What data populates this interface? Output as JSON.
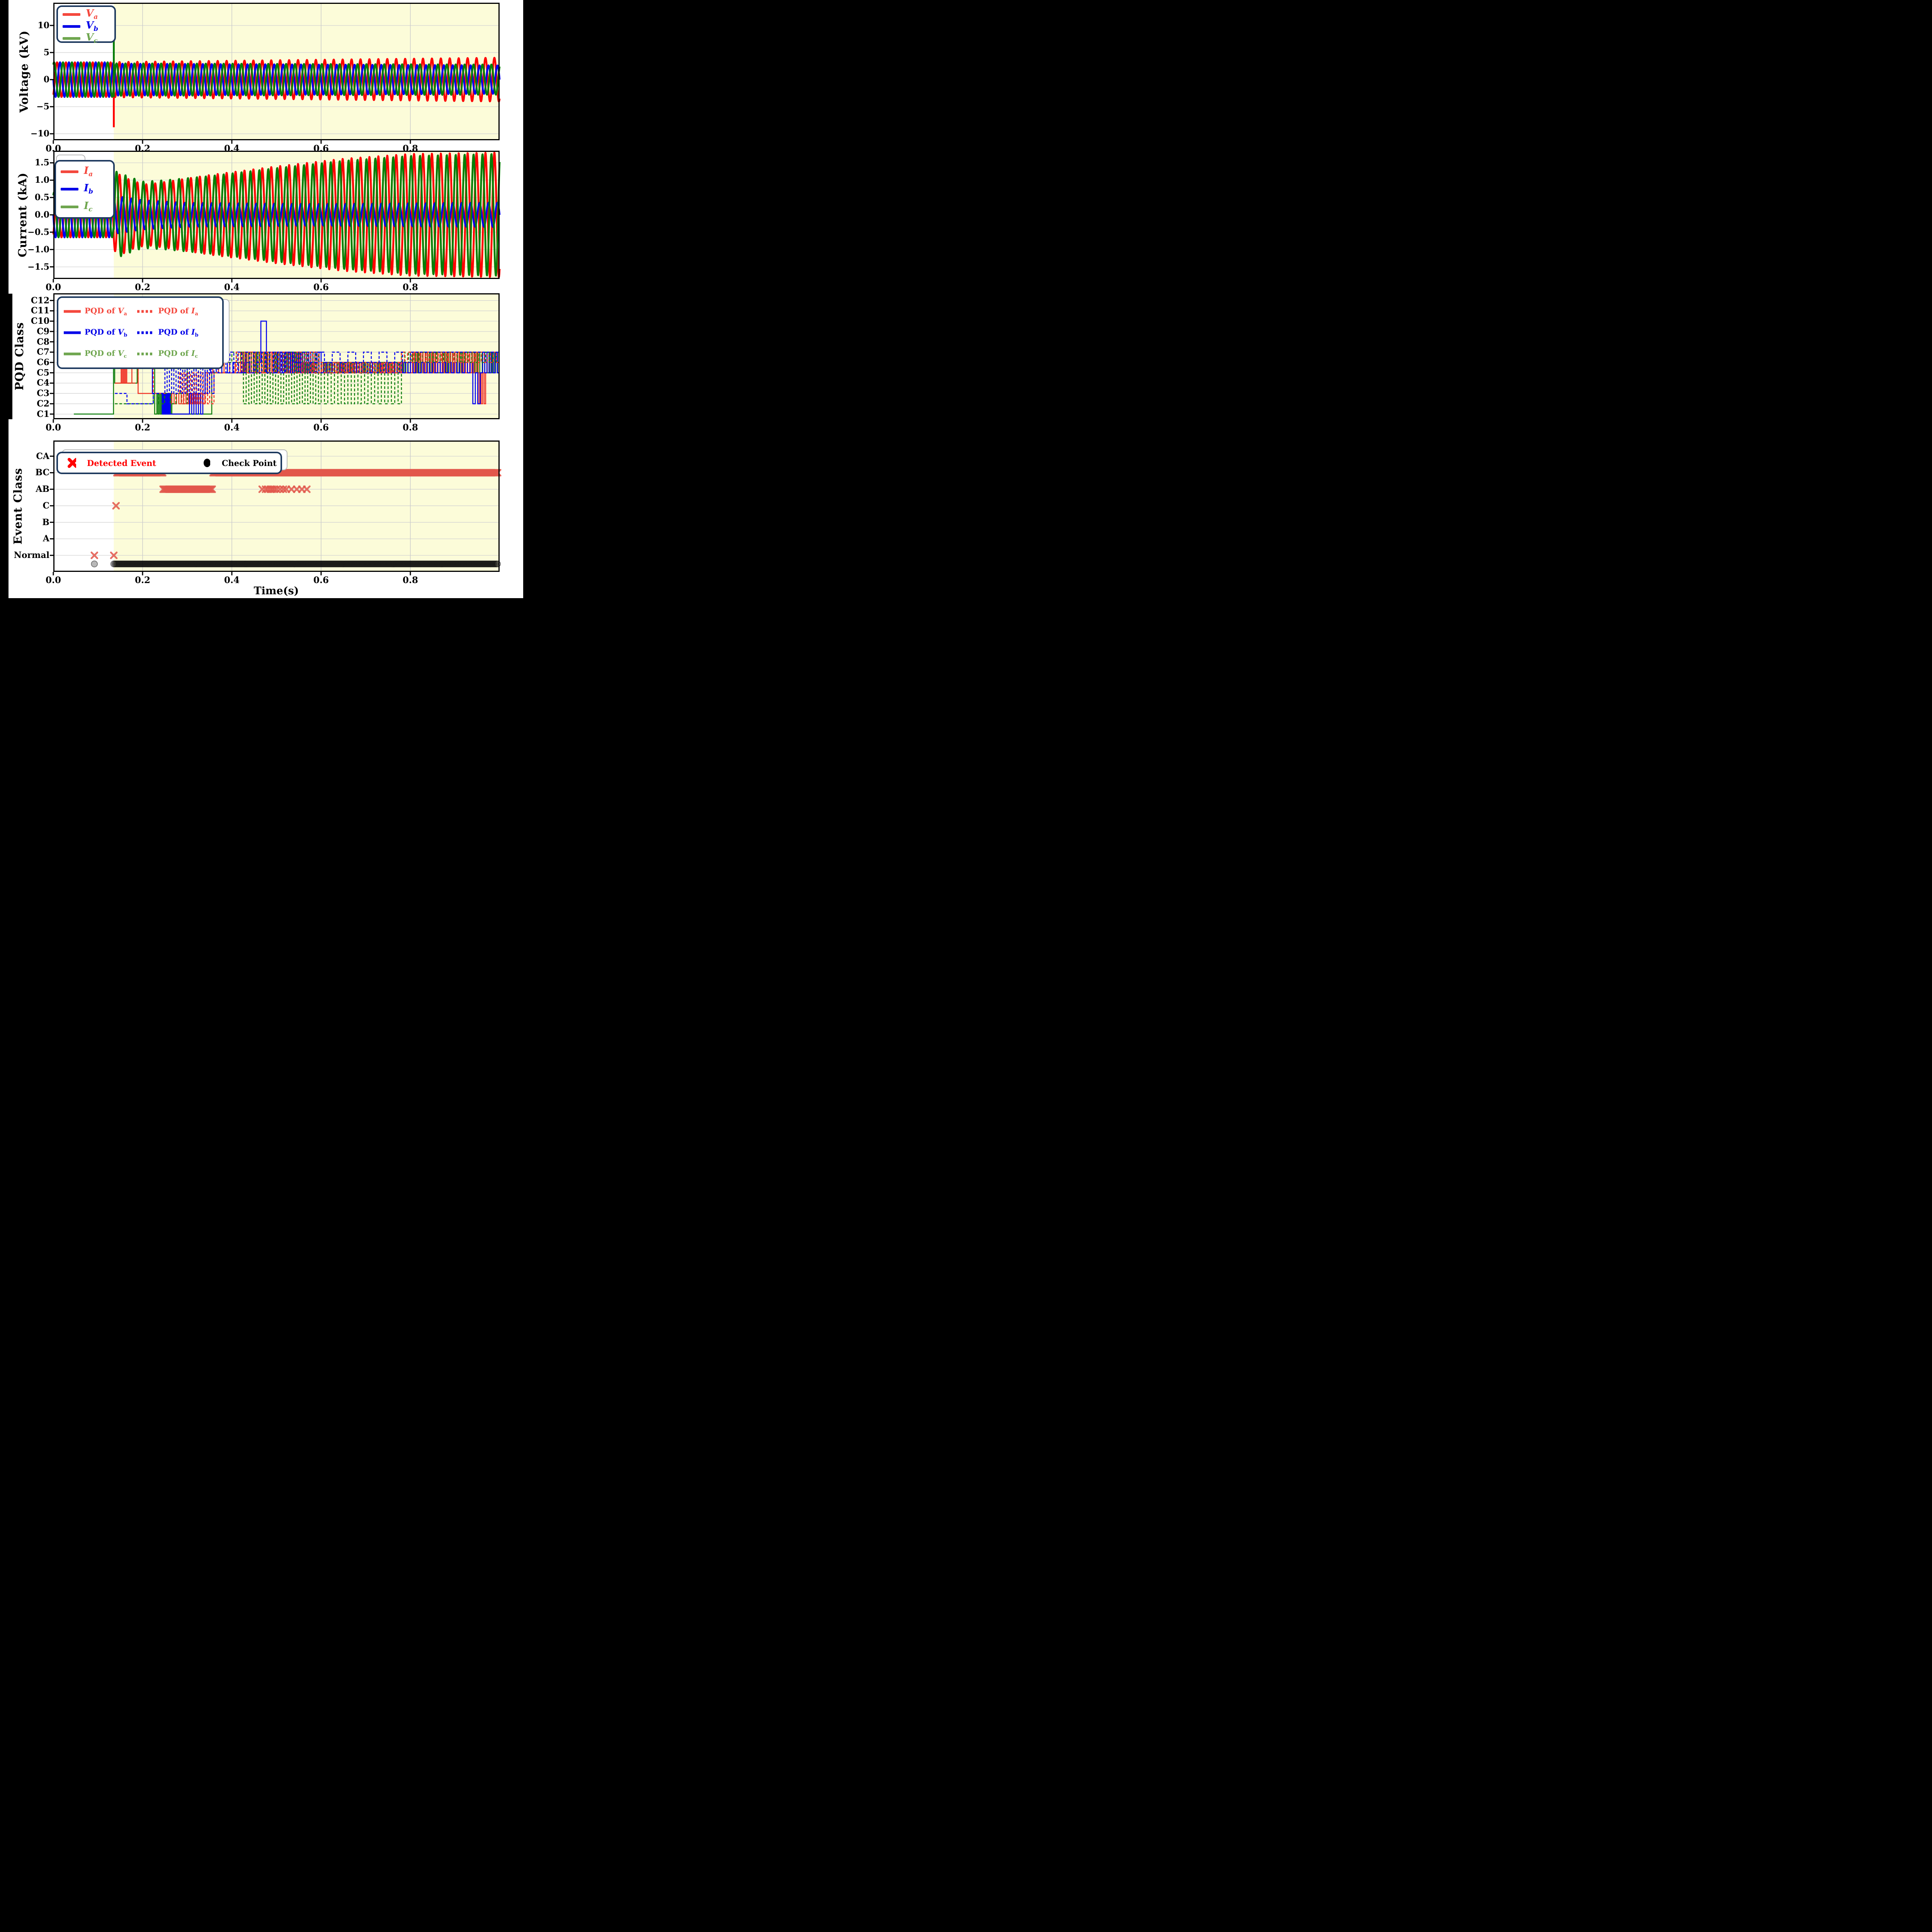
{
  "time_axis": {
    "label": "Time(s)",
    "xlim": [
      0,
      1.0
    ],
    "ticks": [
      {
        "v": 0.0,
        "l": "0.0"
      },
      {
        "v": 0.2,
        "l": "0.2"
      },
      {
        "v": 0.4,
        "l": "0.4"
      },
      {
        "v": 0.6,
        "l": "0.6"
      },
      {
        "v": 0.8,
        "l": "0.8"
      }
    ],
    "event_start": 0.1355
  },
  "style": {
    "page_bg": "#000000",
    "panel_bg": "#ffffff",
    "shade_color": "#fcfcd9",
    "grid_color": "#d2d2d2",
    "spine_color": "#000000",
    "legend_border": "#1e3a5f",
    "detected_color": "#e2574b",
    "checkpoint_color": "#000000"
  },
  "chart_data": [
    {
      "id": "voltage",
      "type": "line",
      "ylabel": "Voltage (kV)",
      "ylim": [
        -11.2,
        14.2
      ],
      "yticks": [
        {
          "v": 10,
          "l": "10"
        },
        {
          "v": 5,
          "l": "5"
        },
        {
          "v": 0,
          "l": "0"
        },
        {
          "v": -5,
          "l": "−5"
        },
        {
          "v": -10,
          "l": "−10"
        }
      ],
      "freq_hz": 50,
      "series": [
        {
          "name": "Va",
          "color": "#ff0000",
          "legend_color": "#f4483d",
          "label": {
            "main": "V",
            "sub": "a"
          },
          "phase_deg": -60,
          "envelope": [
            [
              0,
              3.2
            ],
            [
              0.1349,
              3.2
            ],
            [
              0.1355,
              3.25
            ],
            [
              1.0,
              4.05
            ]
          ]
        },
        {
          "name": "Vb",
          "color": "#0000ee",
          "legend_color": "#0404e8",
          "label": {
            "main": "V",
            "sub": "b"
          },
          "phase_deg": 180,
          "envelope": [
            [
              0,
              3.2
            ],
            [
              0.1349,
              3.2
            ],
            [
              0.1355,
              2.95
            ],
            [
              1.0,
              2.62
            ]
          ]
        },
        {
          "name": "Vc",
          "color": "#077d07",
          "legend_color": "#6fa64f",
          "label": {
            "main": "V",
            "sub": "c"
          },
          "phase_deg": 60,
          "envelope": [
            [
              0,
              3.2
            ],
            [
              0.1349,
              3.2
            ],
            [
              0.1355,
              3.0
            ],
            [
              1.0,
              2.78
            ]
          ]
        }
      ],
      "spikes": [
        {
          "series": "Va",
          "color": "#ff0000",
          "t": 0.1355,
          "from": 3.3,
          "to": -8.8
        },
        {
          "series": "Vc",
          "color": "#077d07",
          "t": 0.1355,
          "from": -3.2,
          "to": 8.0
        }
      ]
    },
    {
      "id": "current",
      "type": "line",
      "ylabel": "Current (kA)",
      "ylim": [
        -1.85,
        1.85
      ],
      "yticks": [
        {
          "v": 1.5,
          "l": "1.5"
        },
        {
          "v": 1.0,
          "l": "1.0"
        },
        {
          "v": 0.5,
          "l": "0.5"
        },
        {
          "v": 0.0,
          "l": "0.0"
        },
        {
          "v": -0.5,
          "l": "−0.5"
        },
        {
          "v": -1.0,
          "l": "−1.0"
        },
        {
          "v": -1.5,
          "l": "−1.5"
        }
      ],
      "freq_hz": 50,
      "series": [
        {
          "name": "Ia",
          "color": "#ff0000",
          "legend_color": "#f4483d",
          "label": {
            "main": "I",
            "sub": "a"
          },
          "phase_deg": -60,
          "envelope": [
            [
              0,
              0.65
            ],
            [
              0.1349,
              0.65
            ],
            [
              0.1355,
              1.02
            ],
            [
              0.15,
              1.18
            ],
            [
              0.165,
              1.05
            ],
            [
              0.185,
              0.95
            ],
            [
              0.21,
              0.88
            ],
            [
              0.25,
              0.95
            ],
            [
              0.35,
              1.15
            ],
            [
              0.5,
              1.4
            ],
            [
              0.65,
              1.62
            ],
            [
              0.8,
              1.76
            ],
            [
              1.0,
              1.8
            ]
          ]
        },
        {
          "name": "Ib",
          "color": "#0000ee",
          "legend_color": "#0404e8",
          "label": {
            "main": "I",
            "sub": "b"
          },
          "phase_deg": 180,
          "envelope": [
            [
              0,
              0.65
            ],
            [
              0.1349,
              0.65
            ],
            [
              0.1355,
              0.55
            ],
            [
              0.2,
              0.42
            ],
            [
              0.3,
              0.34
            ],
            [
              0.6,
              0.31
            ],
            [
              1.0,
              0.35
            ]
          ]
        },
        {
          "name": "Ic",
          "color": "#077d07",
          "legend_color": "#6fa64f",
          "label": {
            "main": "I",
            "sub": "c"
          },
          "phase_deg": 60,
          "envelope": [
            [
              0,
              0.65
            ],
            [
              0.1349,
              0.65
            ],
            [
              0.1355,
              1.28
            ],
            [
              0.17,
              1.1
            ],
            [
              0.2,
              0.96
            ],
            [
              0.25,
              1.0
            ],
            [
              0.35,
              1.12
            ],
            [
              0.5,
              1.35
            ],
            [
              0.65,
              1.56
            ],
            [
              0.8,
              1.7
            ],
            [
              1.0,
              1.76
            ]
          ]
        }
      ],
      "spikes": []
    },
    {
      "id": "pqd",
      "type": "step",
      "ylabel": "PQD Class",
      "categories": [
        "C1",
        "C2",
        "C3",
        "C4",
        "C5",
        "C6",
        "C7",
        "C8",
        "C9",
        "C10",
        "C11",
        "C12"
      ],
      "series": [
        {
          "name": "PQD of Vc",
          "style": "solid",
          "color": "#118011",
          "legend_color": "#6fa64f",
          "label": {
            "pre": "PQD of ",
            "main": "V",
            "sub": "c"
          },
          "segments": [
            {
              "t0": 0.046,
              "t1": 0.1349,
              "c": 1
            },
            {
              "t0": 0.1349,
              "t1": 0.1375,
              "c": 9
            },
            {
              "t0": 0.1375,
              "t1": 0.188,
              "c": 4
            },
            {
              "t0": 0.188,
              "t1": 0.222,
              "c": 7
            },
            {
              "t0": 0.222,
              "t1": 0.232,
              "a": 9,
              "b": 1,
              "n": 1
            },
            {
              "t0": 0.232,
              "t1": 0.268,
              "a": 3,
              "b": 1,
              "n": 7
            },
            {
              "t0": 0.268,
              "t1": 0.355,
              "c": 1
            },
            {
              "t0": 0.355,
              "t1": 0.42,
              "c": 5
            },
            {
              "t0": 0.42,
              "t1": 0.56,
              "a": 7,
              "b": 5,
              "n": 12
            },
            {
              "t0": 0.56,
              "t1": 0.8,
              "a": 6,
              "b": 5,
              "n": 24
            },
            {
              "t0": 0.8,
              "t1": 1.0,
              "a": 7,
              "b": 5,
              "n": 18
            }
          ]
        },
        {
          "name": "PQD of Va",
          "style": "solid",
          "color": "#f03528",
          "legend_color": "#f4483d",
          "label": {
            "pre": "PQD of ",
            "main": "V",
            "sub": "a"
          },
          "segments": [
            {
              "t0": 0.138,
              "t1": 0.152,
              "c": 4
            },
            {
              "t0": 0.152,
              "t1": 0.167,
              "a": 9,
              "b": 4,
              "n": 3
            },
            {
              "t0": 0.167,
              "t1": 0.176,
              "c": 4
            },
            {
              "t0": 0.176,
              "t1": 0.19,
              "c": 7
            },
            {
              "t0": 0.19,
              "t1": 0.26,
              "c": 3
            },
            {
              "t0": 0.26,
              "t1": 0.345,
              "a": 2,
              "b": 3,
              "n": 8
            },
            {
              "t0": 0.345,
              "t1": 0.42,
              "a": 5,
              "b": 6,
              "n": 3
            },
            {
              "t0": 0.42,
              "t1": 0.55,
              "a": 5,
              "b": 7,
              "n": 14
            },
            {
              "t0": 0.55,
              "t1": 0.8,
              "a": 5,
              "b": 6,
              "n": 22
            },
            {
              "t0": 0.8,
              "t1": 0.952,
              "a": 5,
              "b": 7,
              "n": 16
            },
            {
              "t0": 0.952,
              "t1": 0.972,
              "a": 2,
              "b": 5,
              "n": 3
            },
            {
              "t0": 0.972,
              "t1": 1.0,
              "a": 7,
              "b": 5,
              "n": 3
            }
          ]
        },
        {
          "name": "PQD of Vb",
          "style": "solid",
          "color": "#0000f0",
          "legend_color": "#0404e8",
          "label": {
            "pre": "PQD of ",
            "main": "V",
            "sub": "b"
          },
          "segments": [
            {
              "t0": 0.18,
              "t1": 0.188,
              "a": 9,
              "b": 7,
              "n": 1
            },
            {
              "t0": 0.188,
              "t1": 0.222,
              "c": 7
            },
            {
              "t0": 0.222,
              "t1": 0.244,
              "c": 3
            },
            {
              "t0": 0.244,
              "t1": 0.262,
              "a": 1,
              "b": 3,
              "n": 6
            },
            {
              "t0": 0.262,
              "t1": 0.3,
              "c": 1
            },
            {
              "t0": 0.3,
              "t1": 0.34,
              "a": 1,
              "b": 3,
              "n": 4
            },
            {
              "t0": 0.34,
              "t1": 0.465,
              "a": 5,
              "b": 6,
              "n": 5
            },
            {
              "t0": 0.465,
              "t1": 0.49,
              "a": 10,
              "b": 5,
              "n": 1
            },
            {
              "t0": 0.49,
              "t1": 0.6,
              "a": 5,
              "b": 7,
              "n": 12
            },
            {
              "t0": 0.6,
              "t1": 0.94,
              "a": 5,
              "b": 6,
              "n": 28
            },
            {
              "t0": 0.94,
              "t1": 0.962,
              "a": 2,
              "b": 5,
              "n": 2
            },
            {
              "t0": 0.962,
              "t1": 1.0,
              "a": 7,
              "b": 5,
              "n": 4
            }
          ]
        },
        {
          "name": "PQD of Ic",
          "style": "dashed",
          "color": "#118011",
          "legend_color": "#6fa64f",
          "label": {
            "pre": "PQD of ",
            "main": "I",
            "sub": "c"
          },
          "segments": [
            {
              "t0": 0.138,
              "t1": 0.224,
              "c": 2
            },
            {
              "t0": 0.224,
              "t1": 0.3,
              "a": 3,
              "b": 2,
              "n": 3
            },
            {
              "t0": 0.3,
              "t1": 0.42,
              "a": 7,
              "b": 6,
              "n": 6
            },
            {
              "t0": 0.42,
              "t1": 0.6,
              "a": 7,
              "b": 2,
              "n": 15
            },
            {
              "t0": 0.6,
              "t1": 0.78,
              "a": 6,
              "b": 2,
              "n": 12
            },
            {
              "t0": 0.78,
              "t1": 1.0,
              "a": 7,
              "b": 6,
              "n": 14
            }
          ]
        },
        {
          "name": "PQD of Ia",
          "style": "dashed",
          "color": "#f03528",
          "legend_color": "#f4483d",
          "label": {
            "pre": "PQD of ",
            "main": "I",
            "sub": "a"
          },
          "segments": [
            {
              "t0": 0.138,
              "t1": 0.19,
              "c": 4
            },
            {
              "t0": 0.19,
              "t1": 0.224,
              "c": 7
            },
            {
              "t0": 0.224,
              "t1": 0.283,
              "c": 3
            },
            {
              "t0": 0.283,
              "t1": 0.36,
              "a": 5,
              "b": 2,
              "n": 8
            },
            {
              "t0": 0.36,
              "t1": 0.41,
              "c": 5
            },
            {
              "t0": 0.41,
              "t1": 0.6,
              "a": 7,
              "b": 5,
              "n": 20
            },
            {
              "t0": 0.6,
              "t1": 0.78,
              "a": 6,
              "b": 5,
              "n": 20
            },
            {
              "t0": 0.78,
              "t1": 1.0,
              "a": 7,
              "b": 6,
              "n": 16
            }
          ]
        },
        {
          "name": "PQD of Ib",
          "style": "dashed",
          "color": "#0000f0",
          "legend_color": "#0404e8",
          "label": {
            "pre": "PQD of ",
            "main": "I",
            "sub": "b"
          },
          "segments": [
            {
              "t0": 0.138,
              "t1": 0.165,
              "c": 3
            },
            {
              "t0": 0.165,
              "t1": 0.224,
              "c": 2
            },
            {
              "t0": 0.224,
              "t1": 0.25,
              "c": 3
            },
            {
              "t0": 0.25,
              "t1": 0.36,
              "a": 7,
              "b": 3,
              "n": 11
            },
            {
              "t0": 0.36,
              "t1": 0.52,
              "a": 7,
              "b": 5,
              "n": 9
            },
            {
              "t0": 0.52,
              "t1": 0.8,
              "a": 7,
              "b": 6,
              "n": 8
            },
            {
              "t0": 0.8,
              "t1": 1.0,
              "c": 7
            }
          ]
        }
      ]
    },
    {
      "id": "event",
      "type": "scatter",
      "ylabel": "Event Class",
      "categories": [
        "Normal",
        "A",
        "B",
        "C",
        "AB",
        "BC",
        "CA"
      ],
      "detected": {
        "legend_label": "Detected Event",
        "legend_color": "#ff0000",
        "marker_color": "#e2574b",
        "bands": [
          {
            "level": "BC",
            "t0": 0.1425,
            "t1": 0.246,
            "step": 0.0025
          },
          {
            "level": "AB",
            "t0": 0.246,
            "t1": 0.358,
            "step": 0.0025
          },
          {
            "level": "BC",
            "t0": 0.358,
            "t1": 0.997,
            "step": 0.0025
          }
        ],
        "points": [
          {
            "level": "Normal",
            "t": 0.092
          },
          {
            "level": "Normal",
            "t": 0.1355
          },
          {
            "level": "C",
            "t": 0.1405
          },
          {
            "level": "AB",
            "t": 0.468
          },
          {
            "level": "AB",
            "t": 0.4755
          },
          {
            "level": "AB",
            "t": 0.4805
          },
          {
            "level": "AB",
            "t": 0.486
          },
          {
            "level": "AB",
            "t": 0.4905
          },
          {
            "level": "AB",
            "t": 0.495
          },
          {
            "level": "AB",
            "t": 0.5005
          },
          {
            "level": "AB",
            "t": 0.508
          },
          {
            "level": "AB",
            "t": 0.5155
          },
          {
            "level": "AB",
            "t": 0.522
          },
          {
            "level": "AB",
            "t": 0.5335
          },
          {
            "level": "AB",
            "t": 0.5455
          },
          {
            "level": "AB",
            "t": 0.557
          },
          {
            "level": "AB",
            "t": 0.568
          }
        ]
      },
      "checkpoints": {
        "legend_label": "Check Point",
        "legend_color": "#000000",
        "y_level": 0.48,
        "band": {
          "t0": 0.1355,
          "t1": 0.997,
          "step": 0.0028
        },
        "points": [
          0.092
        ]
      }
    }
  ]
}
